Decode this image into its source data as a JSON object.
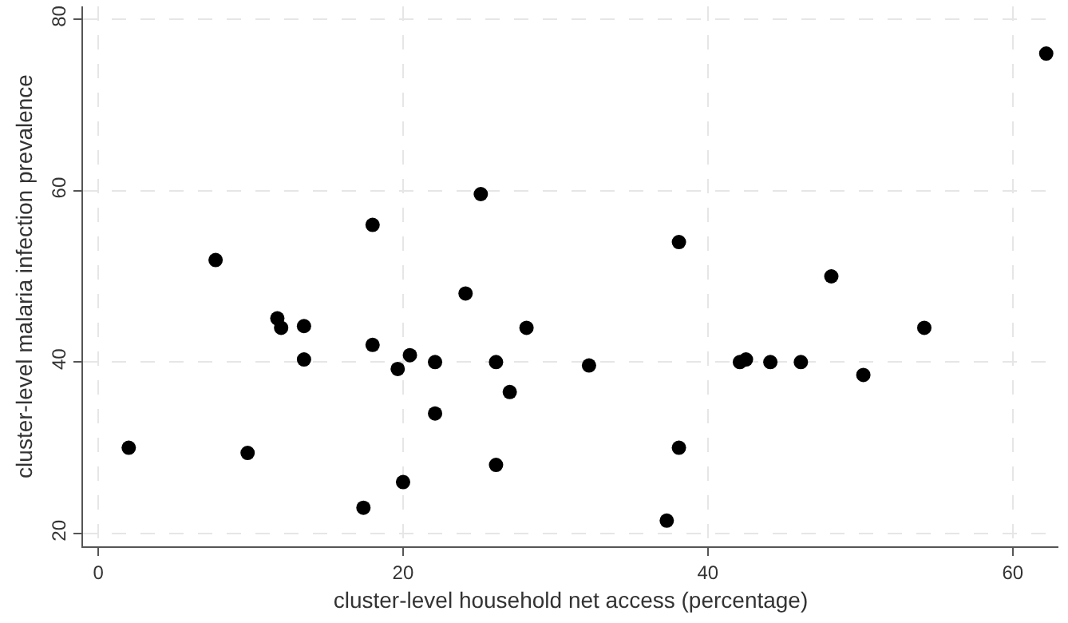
{
  "chart_data": {
    "type": "scatter",
    "xlabel": "cluster-level household net access (percentage)",
    "ylabel": "cluster-level malaria infection prevalence",
    "x": [
      2,
      7.7,
      9.8,
      11.75,
      12,
      13.5,
      13.5,
      18,
      18,
      17.4,
      19.65,
      20,
      20.45,
      22.1,
      22.1,
      24.1,
      25.1,
      26.1,
      26.1,
      27,
      28.1,
      32.2,
      38.1,
      38.1,
      37.3,
      42.1,
      42.5,
      44.1,
      46.1,
      48.1,
      50.2,
      54.2,
      62.2
    ],
    "series": [
      {
        "color": "#000000",
        "values": [
          30,
          51.9,
          29.4,
          45.1,
          44,
          44.2,
          40.3,
          56,
          42,
          23,
          39.2,
          26,
          40.8,
          40,
          34,
          48,
          59.6,
          40,
          28,
          36.5,
          44,
          39.6,
          54,
          30,
          21.5,
          40,
          40.3,
          40,
          40,
          50,
          38.5,
          44,
          76
        ]
      }
    ],
    "xlim": [
      -1,
      63
    ],
    "ylim": [
      18.5,
      81.5
    ],
    "xticks": [
      0,
      20,
      40,
      60
    ],
    "yticks": [
      20,
      40,
      60,
      80
    ],
    "grid": true,
    "marker": "circle"
  }
}
